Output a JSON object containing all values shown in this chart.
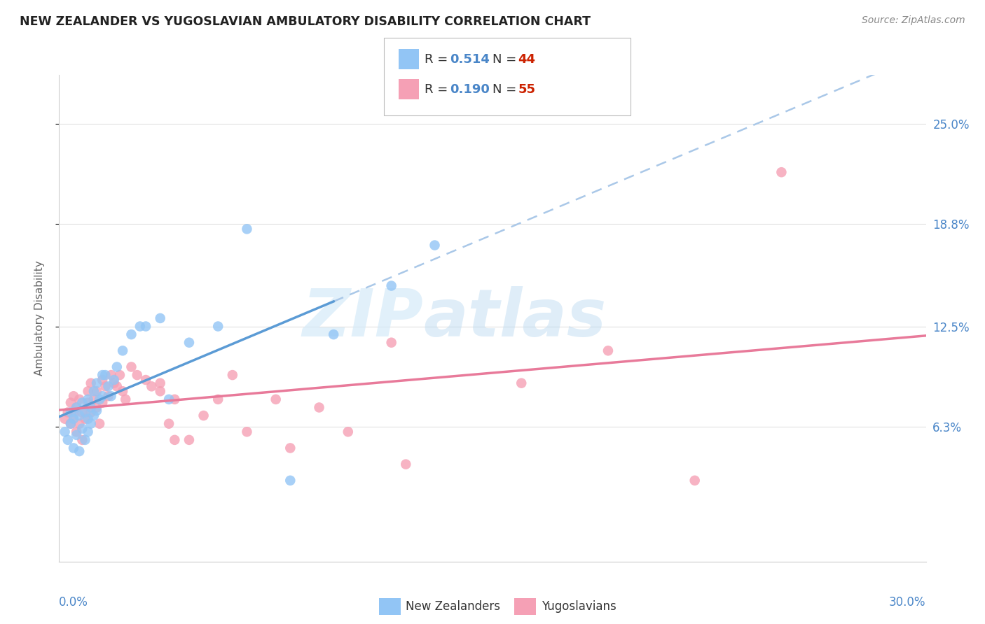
{
  "title": "NEW ZEALANDER VS YUGOSLAVIAN AMBULATORY DISABILITY CORRELATION CHART",
  "source": "Source: ZipAtlas.com",
  "ylabel": "Ambulatory Disability",
  "ytick_labels": [
    "6.3%",
    "12.5%",
    "18.8%",
    "25.0%"
  ],
  "ytick_values": [
    0.063,
    0.125,
    0.188,
    0.25
  ],
  "xmin": 0.0,
  "xmax": 0.3,
  "ymin": -0.02,
  "ymax": 0.28,
  "nz_color": "#92c5f5",
  "yugo_color": "#f5a0b5",
  "nz_line_color": "#5b9bd5",
  "yugo_line_color": "#e87a9a",
  "dash_color": "#aac8e8",
  "nz_R": "0.514",
  "nz_N": "44",
  "yugo_R": "0.190",
  "yugo_N": "55",
  "legend_R_color": "#4a86c8",
  "legend_N_color": "#cc2200",
  "nz_scatter_x": [
    0.002,
    0.003,
    0.004,
    0.004,
    0.005,
    0.005,
    0.006,
    0.006,
    0.007,
    0.007,
    0.008,
    0.008,
    0.009,
    0.009,
    0.01,
    0.01,
    0.01,
    0.011,
    0.011,
    0.012,
    0.012,
    0.013,
    0.013,
    0.014,
    0.015,
    0.015,
    0.016,
    0.017,
    0.018,
    0.019,
    0.02,
    0.022,
    0.025,
    0.028,
    0.03,
    0.035,
    0.038,
    0.045,
    0.055,
    0.065,
    0.08,
    0.095,
    0.115,
    0.13
  ],
  "nz_scatter_y": [
    0.06,
    0.055,
    0.072,
    0.065,
    0.05,
    0.068,
    0.058,
    0.075,
    0.048,
    0.07,
    0.062,
    0.078,
    0.055,
    0.072,
    0.06,
    0.068,
    0.08,
    0.065,
    0.075,
    0.07,
    0.085,
    0.073,
    0.09,
    0.08,
    0.095,
    0.082,
    0.095,
    0.088,
    0.082,
    0.092,
    0.1,
    0.11,
    0.12,
    0.125,
    0.125,
    0.13,
    0.08,
    0.115,
    0.125,
    0.185,
    0.03,
    0.12,
    0.15,
    0.175
  ],
  "yugo_scatter_x": [
    0.002,
    0.003,
    0.004,
    0.004,
    0.005,
    0.005,
    0.006,
    0.006,
    0.007,
    0.007,
    0.008,
    0.008,
    0.009,
    0.01,
    0.01,
    0.011,
    0.011,
    0.012,
    0.013,
    0.013,
    0.014,
    0.015,
    0.015,
    0.016,
    0.017,
    0.018,
    0.019,
    0.02,
    0.021,
    0.022,
    0.023,
    0.025,
    0.027,
    0.03,
    0.032,
    0.035,
    0.038,
    0.04,
    0.045,
    0.05,
    0.055,
    0.065,
    0.075,
    0.09,
    0.1,
    0.115,
    0.16,
    0.19,
    0.22,
    0.25,
    0.035,
    0.04,
    0.06,
    0.08,
    0.12
  ],
  "yugo_scatter_y": [
    0.068,
    0.072,
    0.065,
    0.078,
    0.07,
    0.082,
    0.06,
    0.075,
    0.065,
    0.08,
    0.055,
    0.072,
    0.068,
    0.078,
    0.085,
    0.072,
    0.09,
    0.08,
    0.075,
    0.085,
    0.065,
    0.092,
    0.078,
    0.088,
    0.082,
    0.095,
    0.09,
    0.088,
    0.095,
    0.085,
    0.08,
    0.1,
    0.095,
    0.092,
    0.088,
    0.09,
    0.065,
    0.08,
    0.055,
    0.07,
    0.08,
    0.06,
    0.08,
    0.075,
    0.06,
    0.115,
    0.09,
    0.11,
    0.03,
    0.22,
    0.085,
    0.055,
    0.095,
    0.05,
    0.04
  ],
  "watermark_zip": "ZIP",
  "watermark_atlas": "atlas",
  "background_color": "#ffffff",
  "grid_color": "#e0e0e0"
}
